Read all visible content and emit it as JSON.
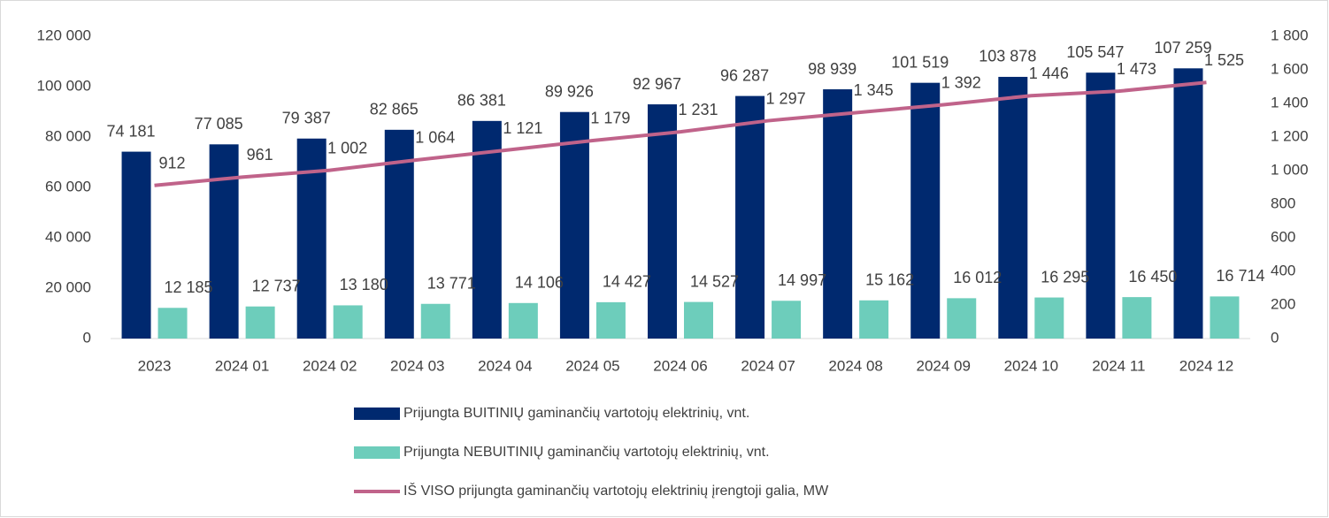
{
  "chart_data": {
    "type": "bar",
    "categories": [
      "2023",
      "2024 01",
      "2024 02",
      "2024 03",
      "2024 04",
      "2024 05",
      "2024 06",
      "2024 07",
      "2024 08",
      "2024 09",
      "2024 10",
      "2024 11",
      "2024 12"
    ],
    "series": [
      {
        "name": "Prijungta BUITINIŲ gaminančių vartotojų elektrinių, vnt.",
        "color": "#00296f",
        "type": "bar",
        "values": [
          74181,
          77085,
          79387,
          82865,
          86381,
          89926,
          92967,
          96287,
          98939,
          101519,
          103878,
          105547,
          107259
        ],
        "value_labels": [
          "74 181",
          "77 085",
          "79 387",
          "82 865",
          "86 381",
          "89 926",
          "92 967",
          "96 287",
          "98 939",
          "101 519",
          "103 878",
          "105 547",
          "107 259"
        ]
      },
      {
        "name": "Prijungta NEBUITINIŲ gaminančių vartotojų elektrinių, vnt.",
        "color": "#6dcdbb",
        "type": "bar",
        "values": [
          12185,
          12737,
          13180,
          13771,
          14106,
          14427,
          14527,
          14997,
          15162,
          16012,
          16295,
          16450,
          16714
        ],
        "value_labels": [
          "12 185",
          "12 737",
          "13 180",
          "13 771",
          "14 106",
          "14 427",
          "14 527",
          "14 997",
          "15 162",
          "16 012",
          "16 295",
          "16 450",
          "16 714"
        ]
      },
      {
        "name": "IŠ VISO prijungta gaminančių vartotojų elektrinių įrengtoji galia, MW",
        "color": "#c0638a",
        "type": "line",
        "axis": "y2",
        "values": [
          912,
          961,
          1002,
          1064,
          1121,
          1179,
          1231,
          1297,
          1345,
          1392,
          1446,
          1473,
          1525
        ],
        "value_labels": [
          "912",
          "961",
          "1 002",
          "1 064",
          "1 121",
          "1 179",
          "1 231",
          "1 297",
          "1 345",
          "1 392",
          "1 446",
          "1 473",
          "1 525"
        ]
      }
    ],
    "ylim": [
      0,
      120000
    ],
    "yticks": [
      0,
      {
        "value": 20000,
        "label": "20 000"
      },
      {
        "value": 40000,
        "label": "40 000"
      },
      {
        "value": 60000,
        "label": "60 000"
      },
      {
        "value": 80000,
        "label": "80 000"
      },
      {
        "value": 100000,
        "label": "100 000"
      },
      {
        "value": 120000,
        "label": "120 000"
      }
    ],
    "y2lim": [
      0,
      1800
    ],
    "y2ticks": [
      0,
      200,
      400,
      600,
      800,
      {
        "value": 1000,
        "label": "1 000"
      },
      {
        "value": 1200,
        "label": "1 200"
      },
      {
        "value": 1400,
        "label": "1 400"
      },
      {
        "value": 1600,
        "label": "1 600"
      },
      {
        "value": 1800,
        "label": "1 800"
      }
    ],
    "legend": "bottom"
  }
}
